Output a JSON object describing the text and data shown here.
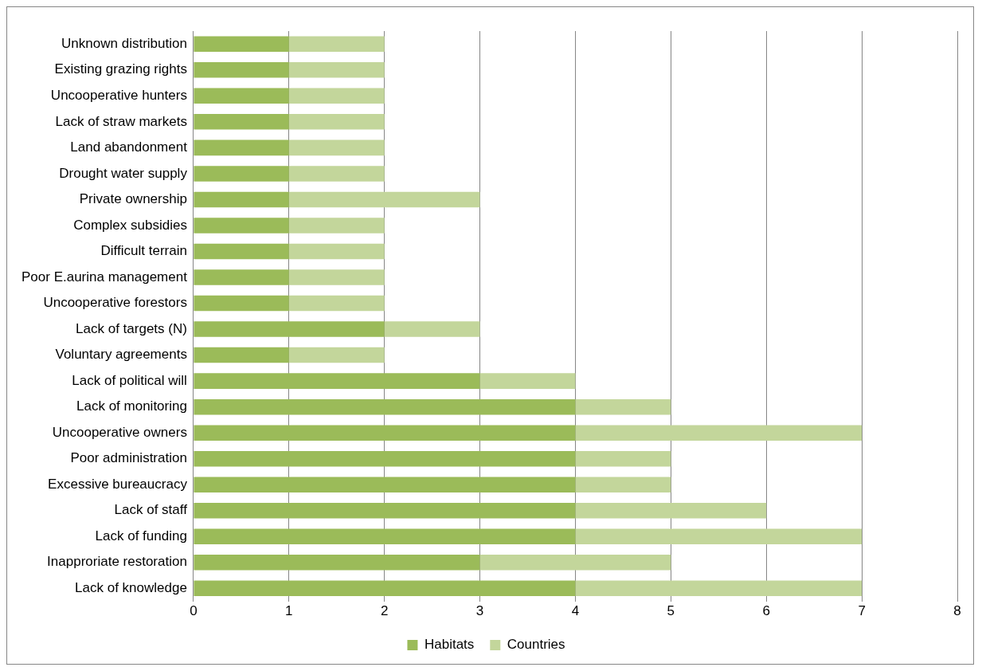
{
  "chart_data": {
    "type": "bar",
    "orientation": "horizontal",
    "stacked": true,
    "categories": [
      "Unknown distribution",
      "Existing grazing rights",
      "Uncooperative hunters",
      "Lack of straw markets",
      "Land abandonment",
      "Drought water supply",
      "Private ownership",
      "Complex subsidies",
      "Difficult terrain",
      "Poor E.aurina management",
      "Uncooperative forestors",
      "Lack of targets (N)",
      "Voluntary agreements",
      "Lack of political will",
      "Lack of monitoring",
      "Uncooperative owners",
      "Poor administration",
      "Excessive bureaucracy",
      "Lack of staff",
      "Lack of funding",
      "Inapproriate restoration",
      "Lack of knowledge"
    ],
    "series": [
      {
        "name": "Habitats",
        "color": "#9bbb59",
        "values": [
          1,
          1,
          1,
          1,
          1,
          1,
          1,
          1,
          1,
          1,
          1,
          2,
          1,
          3,
          4,
          4,
          4,
          4,
          4,
          4,
          3,
          4
        ]
      },
      {
        "name": "Countries",
        "color": "#c3d69b",
        "values": [
          1,
          1,
          1,
          1,
          1,
          1,
          2,
          1,
          1,
          1,
          1,
          1,
          1,
          1,
          1,
          3,
          1,
          1,
          2,
          3,
          2,
          3
        ]
      }
    ],
    "xlim": [
      0,
      8
    ],
    "xticks": [
      0,
      1,
      2,
      3,
      4,
      5,
      6,
      7,
      8
    ],
    "grid": "x",
    "legend": "bottom"
  }
}
